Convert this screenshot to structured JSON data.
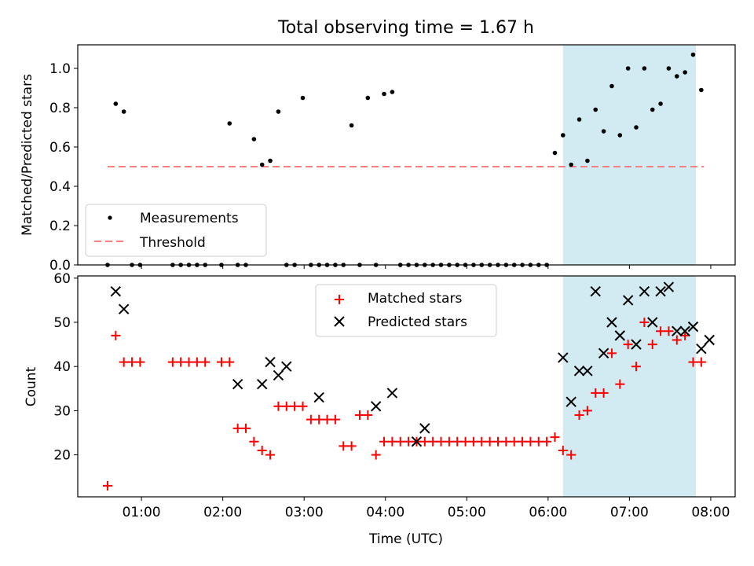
{
  "figure": {
    "title": "Total observing time = 1.67 h"
  },
  "colors": {
    "measurement": "#000000",
    "threshold": "#ff7f7f",
    "shade": "#add8e6",
    "matched": "#ff0000",
    "predicted": "#000000"
  },
  "chart_data": [
    {
      "type": "scatter",
      "ylabel": "Matched/Predicted stars",
      "ylim": [
        0,
        1.12
      ],
      "yticks": [
        "0.0",
        "0.2",
        "0.4",
        "0.6",
        "0.8",
        "1.0"
      ],
      "shaded_interval": [
        "06:11",
        "07:49"
      ],
      "legend": {
        "position": "lower-left",
        "entries": [
          "Measurements",
          "Threshold"
        ]
      },
      "threshold": {
        "name": "Threshold",
        "y": 0.5,
        "x_range": [
          "00:35",
          "07:55"
        ]
      },
      "series": [
        {
          "name": "Measurements",
          "x": [
            "00:35",
            "00:41",
            "00:47",
            "00:53",
            "00:59",
            "01:23",
            "01:29",
            "01:35",
            "01:41",
            "01:47",
            "01:59",
            "02:05",
            "02:11",
            "02:17",
            "02:23",
            "02:29",
            "02:35",
            "02:41",
            "02:47",
            "02:53",
            "02:59",
            "03:05",
            "03:11",
            "03:17",
            "03:23",
            "03:29",
            "03:35",
            "03:41",
            "03:47",
            "03:53",
            "03:59",
            "04:05",
            "04:11",
            "04:17",
            "04:23",
            "04:29",
            "04:35",
            "04:41",
            "04:47",
            "04:53",
            "04:59",
            "05:05",
            "05:11",
            "05:17",
            "05:23",
            "05:29",
            "05:35",
            "05:41",
            "05:47",
            "05:53",
            "05:59",
            "06:05",
            "06:11",
            "06:17",
            "06:23",
            "06:29",
            "06:35",
            "06:41",
            "06:47",
            "06:53",
            "06:59",
            "07:05",
            "07:11",
            "07:17",
            "07:23",
            "07:29",
            "07:35",
            "07:41",
            "07:47",
            "07:53"
          ],
          "y": [
            0.0,
            0.82,
            0.78,
            0.0,
            0.0,
            0.0,
            0.0,
            0.0,
            0.0,
            0.0,
            0.0,
            0.72,
            0.0,
            0.0,
            0.64,
            0.51,
            0.53,
            0.78,
            0.0,
            0.0,
            0.85,
            0.0,
            0.0,
            0.0,
            0.0,
            0.0,
            0.71,
            0.0,
            0.85,
            0.0,
            0.87,
            0.88,
            0.0,
            0.0,
            0.0,
            0.0,
            0.0,
            0.0,
            0.0,
            0.0,
            0.0,
            0.0,
            0.0,
            0.0,
            0.0,
            0.0,
            0.0,
            0.0,
            0.0,
            0.0,
            0.0,
            0.57,
            0.66,
            0.51,
            0.74,
            0.53,
            0.79,
            0.68,
            0.91,
            0.66,
            1.0,
            0.7,
            1.0,
            0.79,
            0.82,
            1.0,
            0.96,
            0.98,
            1.07,
            0.89
          ]
        }
      ]
    },
    {
      "type": "scatter",
      "ylabel": "Count",
      "xlabel": "Time (UTC)",
      "xlim": [
        "00:13",
        "08:18"
      ],
      "xticks": [
        "01:00",
        "02:00",
        "03:00",
        "04:00",
        "05:00",
        "06:00",
        "07:00",
        "08:00"
      ],
      "ylim": [
        10.5,
        60.5
      ],
      "yticks": [
        "20",
        "30",
        "40",
        "50",
        "60"
      ],
      "shaded_interval": [
        "06:11",
        "07:49"
      ],
      "legend": {
        "position": "upper-center",
        "entries": [
          "Matched stars",
          "Predicted stars"
        ]
      },
      "series": [
        {
          "name": "Matched stars",
          "x": [
            "00:35",
            "00:41",
            "00:47",
            "00:53",
            "00:59",
            "01:23",
            "01:29",
            "01:35",
            "01:41",
            "01:47",
            "01:59",
            "02:05",
            "02:11",
            "02:17",
            "02:23",
            "02:29",
            "02:35",
            "02:41",
            "02:47",
            "02:53",
            "02:59",
            "03:05",
            "03:11",
            "03:17",
            "03:23",
            "03:29",
            "03:35",
            "03:41",
            "03:47",
            "03:53",
            "03:59",
            "04:05",
            "04:11",
            "04:17",
            "04:23",
            "04:29",
            "04:35",
            "04:41",
            "04:47",
            "04:53",
            "04:59",
            "05:05",
            "05:11",
            "05:17",
            "05:23",
            "05:29",
            "05:35",
            "05:41",
            "05:47",
            "05:53",
            "05:59",
            "06:05",
            "06:11",
            "06:17",
            "06:23",
            "06:29",
            "06:35",
            "06:41",
            "06:47",
            "06:53",
            "06:59",
            "07:05",
            "07:11",
            "07:17",
            "07:23",
            "07:29",
            "07:35",
            "07:41",
            "07:47",
            "07:53"
          ],
          "y": [
            13,
            47,
            41,
            41,
            41,
            41,
            41,
            41,
            41,
            41,
            41,
            41,
            26,
            26,
            23,
            21,
            20,
            31,
            31,
            31,
            31,
            28,
            28,
            28,
            28,
            22,
            22,
            29,
            29,
            20,
            23,
            23,
            23,
            23,
            23,
            23,
            23,
            23,
            23,
            23,
            23,
            23,
            23,
            23,
            23,
            23,
            23,
            23,
            23,
            23,
            23,
            24,
            21,
            20,
            29,
            30,
            34,
            34,
            43,
            36,
            45,
            40,
            50,
            45,
            48,
            48,
            46,
            47,
            41,
            41
          ]
        },
        {
          "name": "Predicted stars",
          "x": [
            "00:41",
            "00:47",
            "02:11",
            "02:29",
            "02:35",
            "02:41",
            "02:47",
            "03:11",
            "03:53",
            "04:05",
            "04:23",
            "04:29",
            "06:11",
            "06:17",
            "06:23",
            "06:29",
            "06:35",
            "06:41",
            "06:47",
            "06:53",
            "06:59",
            "07:05",
            "07:11",
            "07:17",
            "07:23",
            "07:29",
            "07:35",
            "07:41",
            "07:47",
            "07:53",
            "07:59"
          ],
          "y": [
            57,
            53,
            36,
            36,
            41,
            38,
            40,
            33,
            31,
            34,
            23,
            26,
            42,
            32,
            39,
            39,
            57,
            43,
            50,
            47,
            55,
            45,
            57,
            50,
            57,
            58,
            48,
            48,
            49,
            44,
            46
          ]
        }
      ]
    }
  ]
}
